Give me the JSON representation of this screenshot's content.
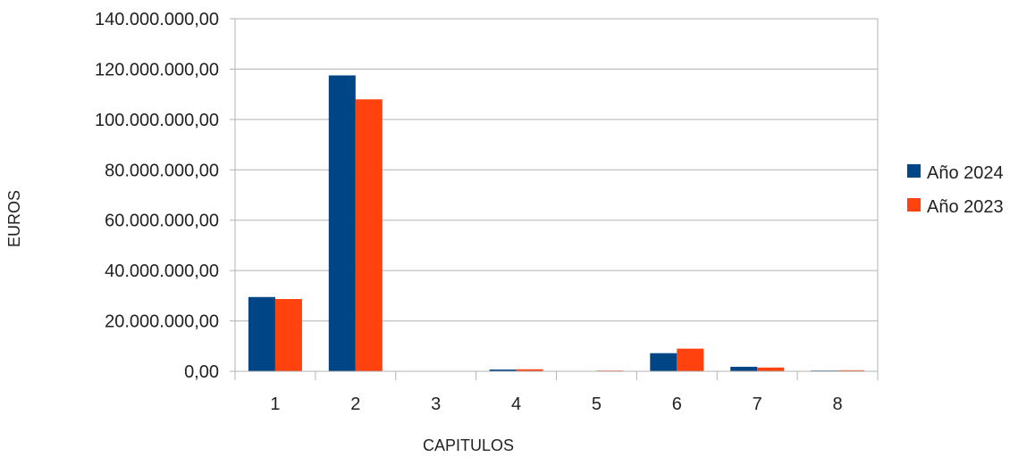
{
  "chart_data": {
    "type": "bar",
    "title": "",
    "xlabel": "CAPITULOS",
    "ylabel": "EUROS",
    "categories": [
      "1",
      "2",
      "3",
      "4",
      "5",
      "6",
      "7",
      "8"
    ],
    "series": [
      {
        "name": "Año 2024",
        "color": "#004586",
        "values": [
          29500000,
          117500000,
          150000,
          700000,
          100000,
          7200000,
          1800000,
          300000
        ]
      },
      {
        "name": "Año 2023",
        "color": "#ff420e",
        "values": [
          28700000,
          108000000,
          150000,
          800000,
          300000,
          9000000,
          1500000,
          400000
        ]
      }
    ],
    "ylim": [
      0,
      140000000
    ],
    "yticks": [
      0,
      20000000,
      40000000,
      60000000,
      80000000,
      100000000,
      120000000,
      140000000
    ],
    "ytick_labels": [
      "0,00",
      "20.000.000,00",
      "40.000.000,00",
      "60.000.000,00",
      "80.000.000,00",
      "100.000.000,00",
      "120.000.000,00",
      "140.000.000,00"
    ],
    "grid": true,
    "legend_position": "right"
  }
}
